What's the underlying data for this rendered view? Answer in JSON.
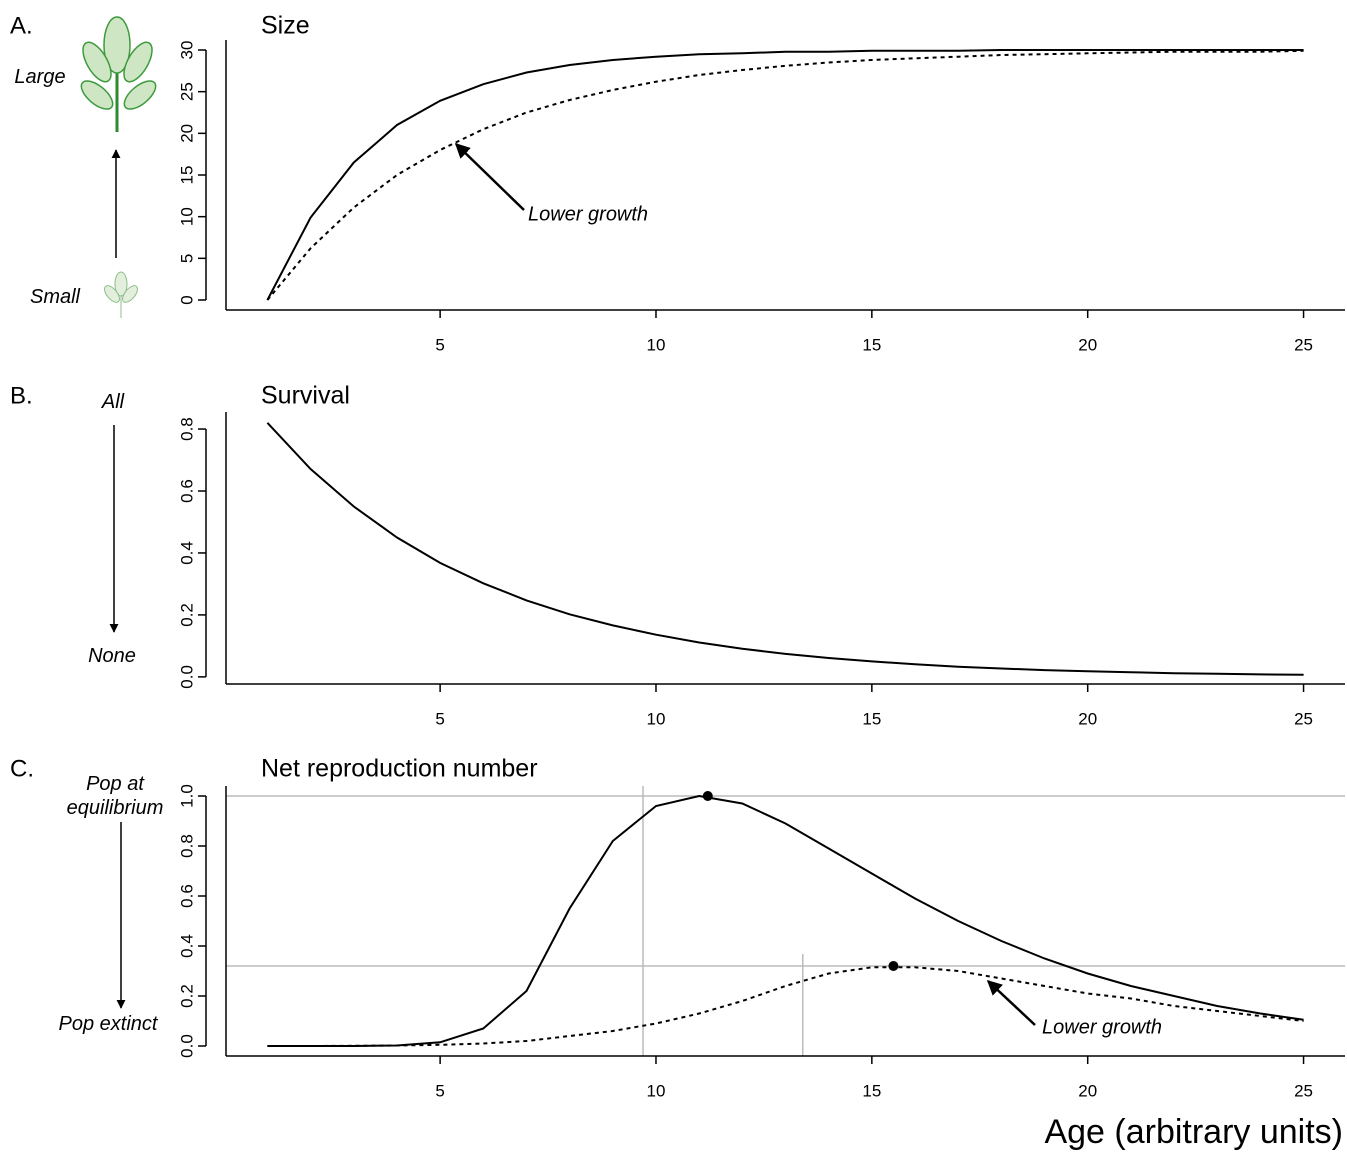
{
  "chart_data": [
    {
      "type": "line",
      "panel": "A.",
      "title": "Size",
      "x": [
        1,
        2,
        3,
        4,
        5,
        6,
        7,
        8,
        9,
        10,
        11,
        12,
        13,
        14,
        15,
        16,
        17,
        18,
        19,
        20,
        21,
        22,
        23,
        24,
        25
      ],
      "series": [
        {
          "color": "#000000",
          "style": "solid",
          "values": [
            0,
            9.9,
            16.5,
            21.0,
            23.9,
            25.9,
            27.3,
            28.2,
            28.8,
            29.2,
            29.5,
            29.6,
            29.8,
            29.8,
            29.9,
            29.9,
            29.9,
            30,
            30,
            30,
            30,
            30,
            30,
            30,
            30
          ]
        },
        {
          "color": "#000000",
          "style": "dotted",
          "values": [
            0,
            6.2,
            11.1,
            15.0,
            18.0,
            20.5,
            22.5,
            24.0,
            25.2,
            26.2,
            27.0,
            27.6,
            28.1,
            28.5,
            28.8,
            29.0,
            29.2,
            29.4,
            29.5,
            29.6,
            29.7,
            29.8,
            29.8,
            29.8,
            29.9
          ]
        }
      ],
      "xlim": [
        0.04,
        25.96
      ],
      "xticks": [
        5,
        10,
        15,
        20,
        25
      ],
      "ylim": [
        -1.2,
        31.2
      ],
      "yticks": [
        0,
        5,
        10,
        15,
        20,
        25,
        30
      ],
      "side_labels": [
        "Large",
        "Small"
      ],
      "side_arrow": "up",
      "annotation": "Lower growth"
    },
    {
      "type": "line",
      "panel": "B.",
      "title": "Survival",
      "x": [
        1,
        2,
        3,
        4,
        5,
        6,
        7,
        8,
        9,
        10,
        11,
        12,
        13,
        14,
        15,
        16,
        17,
        18,
        19,
        20,
        21,
        22,
        23,
        24,
        25
      ],
      "series": [
        {
          "color": "#000000",
          "style": "solid",
          "values": [
            0.82,
            0.671,
            0.55,
            0.45,
            0.368,
            0.302,
            0.247,
            0.202,
            0.166,
            0.136,
            0.111,
            0.091,
            0.074,
            0.061,
            0.05,
            0.041,
            0.033,
            0.027,
            0.022,
            0.018,
            0.015,
            0.012,
            0.01,
            0.008,
            0.007
          ]
        }
      ],
      "xlim": [
        0.04,
        25.96
      ],
      "xticks": [
        5,
        10,
        15,
        20,
        25
      ],
      "ylim": [
        -0.023,
        0.855
      ],
      "yticks": [
        {
          "value": 0,
          "label": "0.0"
        },
        0.2,
        0.4,
        0.6,
        0.8
      ],
      "side_labels": [
        "All",
        "None"
      ],
      "side_arrow": "down"
    },
    {
      "type": "line",
      "panel": "C.",
      "title": "Net reproduction number",
      "x": [
        1,
        2,
        3,
        4,
        5,
        6,
        7,
        8,
        9,
        10,
        11,
        12,
        13,
        14,
        15,
        16,
        17,
        18,
        19,
        20,
        21,
        22,
        23,
        24,
        25
      ],
      "series": [
        {
          "color": "#000000",
          "style": "solid",
          "values": [
            0,
            0,
            0,
            0.002,
            0.015,
            0.07,
            0.22,
            0.55,
            0.82,
            0.96,
            1.0,
            0.97,
            0.89,
            0.79,
            0.69,
            0.59,
            0.5,
            0.42,
            0.35,
            0.29,
            0.24,
            0.2,
            0.16,
            0.13,
            0.105
          ]
        },
        {
          "color": "#000000",
          "style": "dotted",
          "values": [
            0,
            0,
            0.001,
            0.002,
            0.005,
            0.01,
            0.02,
            0.04,
            0.06,
            0.09,
            0.13,
            0.18,
            0.24,
            0.29,
            0.315,
            0.315,
            0.3,
            0.27,
            0.24,
            0.21,
            0.19,
            0.16,
            0.14,
            0.12,
            0.1
          ]
        }
      ],
      "peaks": {
        "x": [
          11.2,
          15.5
        ],
        "y": [
          1.0,
          0.32
        ]
      },
      "hlines": [
        1.0,
        0.32
      ],
      "vlines": [
        9.7,
        13.4
      ],
      "ref_color": "#bbbbbb",
      "xlim": [
        0.04,
        25.96
      ],
      "xticks": [
        5,
        10,
        15,
        20,
        25
      ],
      "ylim": [
        -0.04,
        1.04
      ],
      "yticks": [
        {
          "value": 0,
          "label": "0.0"
        },
        0.2,
        0.4,
        0.6,
        0.8,
        {
          "value": 1,
          "label": "1.0"
        }
      ],
      "side_labels": [
        "Pop at equilibrium",
        "Pop extinct"
      ],
      "side_arrow": "down",
      "annotation": "Lower growth",
      "xlabel": "Age (arbitrary units)"
    }
  ]
}
